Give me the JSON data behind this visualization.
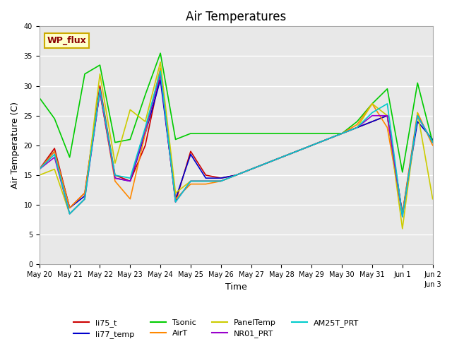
{
  "title": "Air Temperatures",
  "xlabel": "Time",
  "ylabel": "Air Temperature (C)",
  "ylim": [
    0,
    40
  ],
  "xlim": [
    0,
    13
  ],
  "background_color": "#e8e8e8",
  "annotation_text": "WP_flux",
  "annotation_color": "#8b0000",
  "annotation_bg": "#ffffcc",
  "annotation_border": "#ccaa00",
  "series": {
    "li75_t": {
      "color": "#cc0000",
      "x": [
        0,
        0.5,
        1,
        1.5,
        2,
        2.5,
        3,
        3.5,
        4,
        4.5,
        5,
        5.5,
        6,
        6.5,
        7,
        7.5,
        8,
        8.5,
        9,
        9.5,
        10,
        10.5,
        11,
        11.5,
        12,
        12.5,
        13
      ],
      "y": [
        16,
        19.5,
        9.5,
        12,
        30,
        15,
        14,
        20,
        32,
        10.5,
        19,
        15,
        14.5,
        15,
        16,
        17,
        18,
        19,
        20,
        21,
        22,
        23,
        24,
        25,
        8.5,
        25,
        20.5
      ]
    },
    "li77_temp": {
      "color": "#0000cc",
      "x": [
        0,
        0.5,
        1,
        1.5,
        2,
        2.5,
        3,
        3.5,
        4,
        4.5,
        5,
        5.5,
        6,
        6.5,
        7,
        7.5,
        8,
        8.5,
        9,
        9.5,
        10,
        10.5,
        11,
        11.5,
        12,
        12.5,
        13
      ],
      "y": [
        16,
        19,
        9.5,
        11.5,
        29,
        14.5,
        14,
        22,
        31,
        11,
        18.5,
        14.5,
        14.5,
        15,
        16,
        17,
        18,
        19,
        20,
        21,
        22,
        23,
        24,
        25,
        8.5,
        24,
        21
      ]
    },
    "Tsonic": {
      "color": "#00cc00",
      "x": [
        0,
        0.5,
        1,
        1.5,
        2,
        2.5,
        3,
        3.5,
        4,
        4.5,
        5,
        5.5,
        6,
        6.5,
        7,
        7.5,
        8,
        8.5,
        9,
        9.5,
        10,
        10.5,
        11,
        11.5,
        12,
        12.5,
        13
      ],
      "y": [
        28,
        24.5,
        18,
        32,
        33.5,
        20.5,
        21,
        28.5,
        35.5,
        21,
        22,
        22,
        22,
        22,
        22,
        22,
        22,
        22,
        22,
        22,
        22,
        24,
        27,
        29.5,
        15.5,
        30.5,
        20.5
      ]
    },
    "AirT": {
      "color": "#ff8800",
      "x": [
        0,
        0.5,
        1,
        1.5,
        2,
        2.5,
        3,
        3.5,
        4,
        4.5,
        5,
        5.5,
        6,
        6.5,
        7,
        7.5,
        8,
        8.5,
        9,
        9.5,
        10,
        10.5,
        11,
        11.5,
        12,
        12.5,
        13
      ],
      "y": [
        16,
        19,
        9.5,
        12,
        29,
        14,
        11,
        22,
        33,
        11,
        13.5,
        13.5,
        14,
        15,
        16,
        17,
        18,
        19,
        20,
        21,
        22,
        23.5,
        27,
        23,
        8.5,
        25.5,
        20
      ]
    },
    "PanelTemp": {
      "color": "#cccc00",
      "x": [
        0,
        0.5,
        1,
        1.5,
        2,
        2.5,
        3,
        3.5,
        4,
        4.5,
        5,
        5.5,
        6,
        6.5,
        7,
        7.5,
        8,
        8.5,
        9,
        9.5,
        10,
        10.5,
        11,
        11.5,
        12,
        12.5,
        13
      ],
      "y": [
        15,
        16,
        8.5,
        11,
        32,
        17,
        26,
        24,
        34,
        12,
        14,
        14,
        14,
        15,
        16,
        17,
        18,
        19,
        20,
        21,
        22,
        23,
        27,
        25,
        6,
        25.5,
        11
      ]
    },
    "NR01_PRT": {
      "color": "#9900cc",
      "x": [
        0,
        0.5,
        1,
        1.5,
        2,
        2.5,
        3,
        3.5,
        4,
        4.5,
        5,
        5.5,
        6,
        6.5,
        7,
        7.5,
        8,
        8.5,
        9,
        9.5,
        10,
        10.5,
        11,
        11.5,
        12,
        12.5,
        13
      ],
      "y": [
        16,
        18,
        8.5,
        11,
        29,
        14.5,
        14,
        22.5,
        32,
        10.5,
        14,
        14,
        14,
        15,
        16,
        17,
        18,
        19,
        20,
        21,
        22,
        23,
        25,
        25,
        8,
        25,
        20.5
      ]
    },
    "AM25T_PRT": {
      "color": "#00cccc",
      "x": [
        0,
        0.5,
        1,
        1.5,
        2,
        2.5,
        3,
        3.5,
        4,
        4.5,
        5,
        5.5,
        6,
        6.5,
        7,
        7.5,
        8,
        8.5,
        9,
        9.5,
        10,
        10.5,
        11,
        11.5,
        12,
        12.5,
        13
      ],
      "y": [
        16,
        18.5,
        8.5,
        11,
        29.5,
        15,
        14.5,
        23,
        32.5,
        10.5,
        14,
        14,
        14,
        15,
        16,
        17,
        18,
        19,
        20,
        21,
        22,
        23,
        25.5,
        27,
        8,
        25,
        20.5
      ]
    }
  },
  "xtick_positions": [
    0,
    1,
    2,
    3,
    4,
    5,
    6,
    7,
    8,
    9,
    10,
    11,
    12,
    13
  ],
  "xtick_labels": [
    "May 20",
    "May 21",
    "May 22",
    "May 23",
    "May 24",
    "May 25",
    "May 26",
    "May 27",
    "May 28",
    "May 29",
    "May 30",
    "May 31",
    "Jun 1",
    "Jun 2"
  ],
  "ytick_positions": [
    0,
    5,
    10,
    15,
    20,
    25,
    30,
    35,
    40
  ],
  "grid_color": "#ffffff",
  "title_fontsize": 12,
  "axis_fontsize": 9,
  "legend_fontsize": 8
}
